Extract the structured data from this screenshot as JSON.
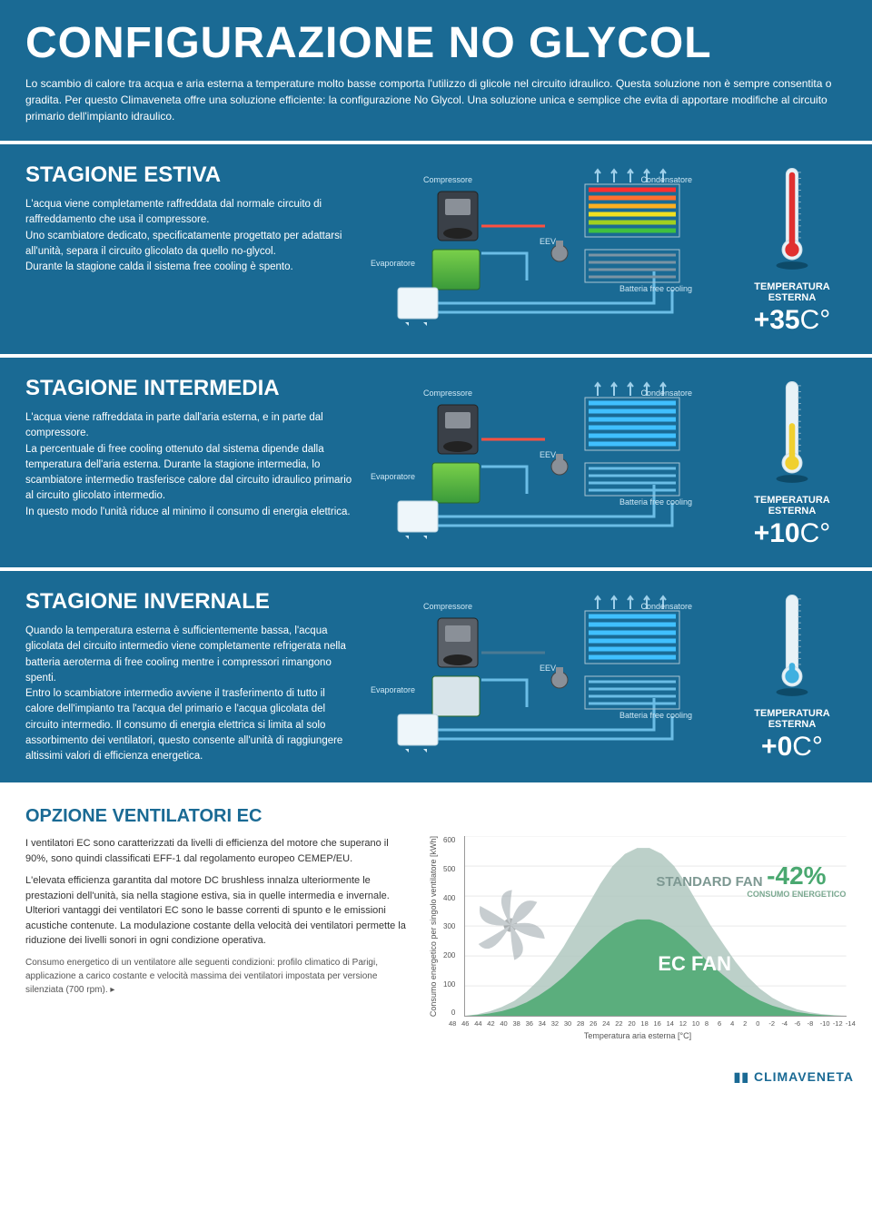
{
  "header": {
    "title": "CONFIGURAZIONE NO GLYCOL",
    "intro": "Lo scambio di calore tra acqua e aria esterna a temperature molto basse comporta l'utilizzo di glicole nel circuito idraulico. Questa soluzione non è sempre consentita o gradita. Per questo Climaveneta offre una soluzione efficiente: la configurazione No Glycol.\nUna soluzione unica e semplice che evita di apportare modifiche al circuito primario dell'impianto idraulico."
  },
  "seasons": [
    {
      "title": "STAGIONE ESTIVA",
      "body": "L'acqua viene completamente raffreddata dal normale circuito di raffreddamento che usa il compressore.\nUno scambiatore dedicato, specificatamente progettato per adattarsi all'unità, separa il circuito glicolato da quello no-glycol.\nDurante la stagione calda il sistema free cooling è spento.",
      "temp_label": "TEMPERATURA ESTERNA",
      "temp_value": "+35",
      "temp_unit": "C°",
      "thermo_fill": 0.95,
      "thermo_color": "#e03030",
      "diagram": {
        "compressor": "Compressore",
        "condenser": "Condensatore",
        "evaporator": "Evaporatore",
        "eev": "EEV",
        "battery": "Batteria free cooling",
        "compressor_active": true,
        "evap_active": true,
        "battery_active": false,
        "coil_colors": [
          "#ff3030",
          "#ff7030",
          "#ffb020",
          "#f0e020",
          "#a0d020",
          "#40c040"
        ]
      }
    },
    {
      "title": "STAGIONE INTERMEDIA",
      "body": "L'acqua viene raffreddata in parte dall'aria esterna, e in parte dal compressore.\nLa percentuale di free cooling ottenuto dal sistema dipende dalla temperatura dell'aria esterna. Durante la stagione intermedia, lo scambiatore intermedio trasferisce calore dal circuito idraulico primario al circuito glicolato intermedio.\nIn questo modo l'unità riduce al minimo il consumo di energia elettrica.",
      "temp_label": "TEMPERATURA ESTERNA",
      "temp_value": "+10",
      "temp_unit": "C°",
      "thermo_fill": 0.45,
      "thermo_color": "#f0d030",
      "diagram": {
        "compressor": "Compressore",
        "condenser": "Condensatore",
        "evaporator": "Evaporatore",
        "eev": "EEV",
        "battery": "Batteria free cooling",
        "compressor_active": true,
        "evap_active": true,
        "battery_active": true,
        "coil_colors": [
          "#40c0ff",
          "#40c0ff",
          "#40c0ff",
          "#40c0ff",
          "#40c0ff",
          "#40c0ff"
        ]
      }
    },
    {
      "title": "STAGIONE INVERNALE",
      "body": "Quando la temperatura esterna è sufficientemente bassa, l'acqua glicolata del circuito intermedio viene completamente refrigerata nella batteria aeroterma di free cooling mentre i compressori rimangono spenti.\nEntro lo scambiatore intermedio avviene il trasferimento di tutto il calore dell'impianto tra l'acqua del primario e l'acqua glicolata del circuito intermedio. Il consumo di energia elettrica si limita al solo assorbimento dei ventilatori, questo consente all'unità di raggiungere altissimi valori di efficienza energetica.",
      "temp_label": "TEMPERATURA ESTERNA",
      "temp_value": "+0",
      "temp_unit": "C°",
      "thermo_fill": 0.1,
      "thermo_color": "#40b0e0",
      "diagram": {
        "compressor": "Compressore",
        "condenser": "Condensatore",
        "evaporator": "Evaporatore",
        "eev": "EEV",
        "battery": "Batteria free cooling",
        "compressor_active": false,
        "evap_active": false,
        "battery_active": true,
        "coil_colors": [
          "#40c0ff",
          "#40c0ff",
          "#40c0ff",
          "#40c0ff",
          "#40c0ff",
          "#40c0ff"
        ]
      }
    }
  ],
  "ec": {
    "title": "OPZIONE VENTILATORI EC",
    "p1": "I ventilatori EC sono caratterizzati da livelli di efficienza del motore che superano il 90%, sono quindi classificati EFF-1 dal regolamento europeo CEMEP/EU.",
    "p2": "L'elevata efficienza garantita dal motore DC brushless innalza ulteriormente le prestazioni dell'unità, sia nella stagione estiva, sia in quelle intermedia e invernale. Ulteriori vantaggi dei ventilatori EC sono le basse correnti di spunto e le emissioni acustiche contenute. La modulazione costante della velocità dei ventilatori permette la riduzione dei livelli sonori in ogni condizione operativa.",
    "p3": "Consumo energetico di un ventilatore alle seguenti condizioni: profilo climatico di Parigi, applicazione a carico costante e velocità massima dei ventilatori impostata per versione silenziata (700 rpm). ▸",
    "chart": {
      "ylabel": "Consumo energetico per singolo ventilatore [kWh]",
      "xlabel": "Temperatura aria esterna [°C]",
      "yticks": [
        0,
        100,
        200,
        300,
        400,
        500,
        600
      ],
      "xticks": [
        48,
        46,
        44,
        42,
        40,
        38,
        36,
        34,
        32,
        30,
        28,
        26,
        24,
        22,
        20,
        18,
        16,
        14,
        12,
        10,
        8,
        6,
        4,
        2,
        0,
        -2,
        -4,
        -6,
        -8,
        -10,
        -12,
        -14
      ],
      "standard_color": "#b0c8c0",
      "ec_color": "#4aa870",
      "standard_label": "STANDARD FAN",
      "ec_label": "EC FAN",
      "badge_pct": "-42%",
      "badge_sub": "CONSUMO ENERGETICO",
      "standard_curve": [
        0,
        5,
        15,
        30,
        50,
        80,
        120,
        170,
        230,
        300,
        370,
        440,
        500,
        540,
        560,
        560,
        540,
        500,
        440,
        370,
        300,
        240,
        180,
        130,
        90,
        60,
        38,
        22,
        12,
        6,
        2,
        0
      ],
      "ec_curve": [
        0,
        3,
        8,
        16,
        28,
        45,
        68,
        96,
        130,
        170,
        212,
        252,
        286,
        310,
        322,
        322,
        310,
        286,
        252,
        212,
        170,
        136,
        102,
        74,
        51,
        34,
        22,
        13,
        7,
        3,
        1,
        0
      ]
    }
  },
  "footer": {
    "brand": "▮▮ CLIMAVENETA"
  },
  "colors": {
    "primary_bg": "#1a6a94",
    "text_light": "#ffffff",
    "accent": "#4aa870"
  }
}
